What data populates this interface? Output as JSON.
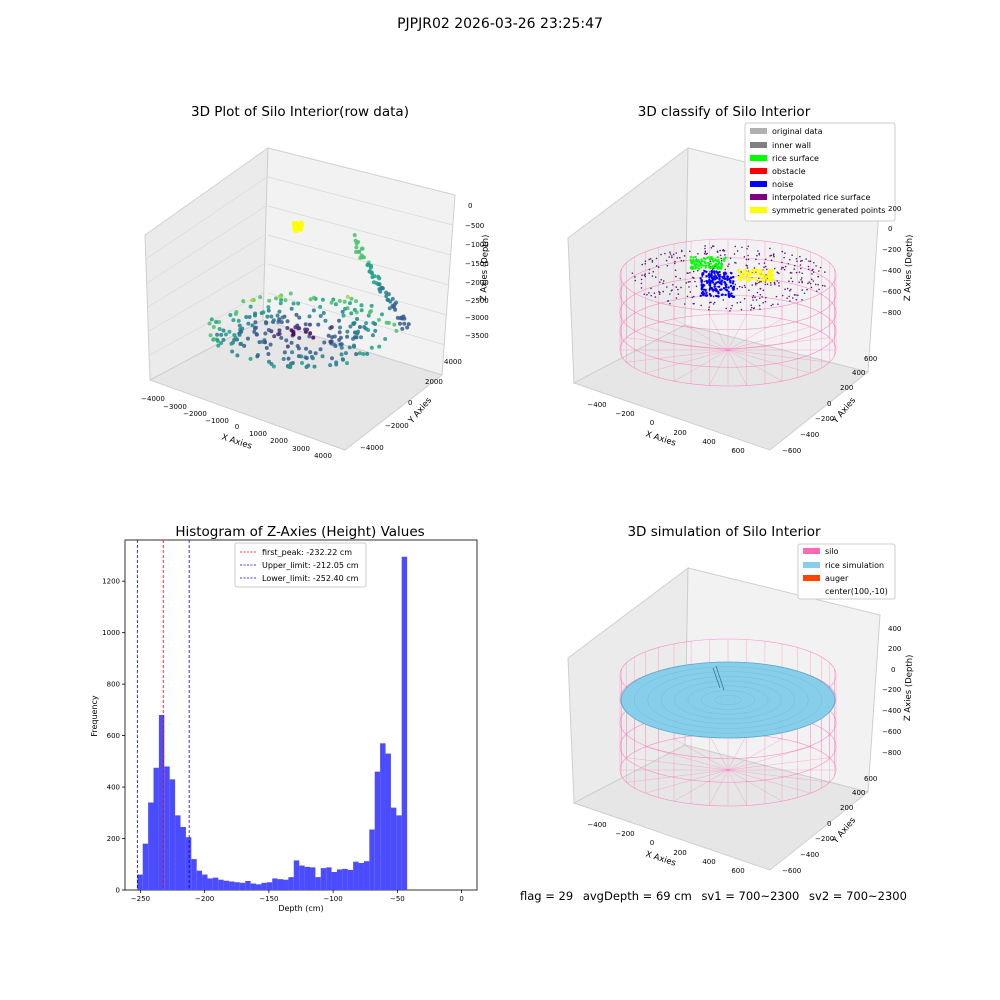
{
  "figure": {
    "suptitle": "PJPJR02 2026-03-26 23:25:47",
    "status": {
      "flag": "flag = 29",
      "avg_depth": "avgDepth = 69 cm",
      "sv1": "sv1 = 700~2300",
      "sv2": "sv2 = 700~2300"
    }
  },
  "colors": {
    "hist_bar": "#4b4bff",
    "first_peak": "#ff0000",
    "limits": "#0000cc",
    "pane": "#f2f2f2",
    "silo_pink": "#ff69b4",
    "rice_blue": "#87ceeb",
    "auger": "#ff4500"
  },
  "chart_data": [
    {
      "id": "raw",
      "type": "scatter",
      "title": "3D Plot of Silo Interior(row data)",
      "xlabel": "X Axies",
      "ylabel": "Y Axies",
      "zlabel": "Z Axies (Depth)",
      "xticks": [
        "−4000",
        "−3000",
        "−2000",
        "−1000",
        "0",
        "1000",
        "2000",
        "3000",
        "4000"
      ],
      "yticks": [
        "−4000",
        "−2000",
        "0",
        "2000",
        "4000"
      ],
      "zticks": [
        "0",
        "−500",
        "−1000",
        "−1500",
        "−2000",
        "−2500",
        "−3000",
        "−3500"
      ],
      "colormap": "viridis",
      "highlight_color": "#ffff00"
    },
    {
      "id": "classify",
      "type": "scatter",
      "title": "3D classify of Silo Interior",
      "xlabel": "X Axies",
      "ylabel": "Y Axies",
      "zlabel": "Z Axies (Depth)",
      "xticks": [
        "−400",
        "−200",
        "0",
        "200",
        "400",
        "600"
      ],
      "yticks": [
        "−600",
        "−400",
        "−200",
        "0",
        "200",
        "400",
        "600"
      ],
      "zticks": [
        "200",
        "0",
        "−200",
        "−400",
        "−600",
        "−800"
      ],
      "legend": [
        {
          "label": "original data",
          "color": "#b0b0b0"
        },
        {
          "label": "inner wall",
          "color": "#808080"
        },
        {
          "label": "rice surface",
          "color": "#00ff00"
        },
        {
          "label": "obstacle",
          "color": "#ff0000"
        },
        {
          "label": "noise",
          "color": "#0000ff"
        },
        {
          "label": "interpolated rice surface",
          "color": "#800080"
        },
        {
          "label": "symmetric generated points",
          "color": "#ffff00"
        }
      ]
    },
    {
      "id": "hist",
      "type": "bar",
      "title": "Histogram of Z-Axies (Height) Values",
      "xlabel": "Depth (cm)",
      "ylabel": "Frequency",
      "xlim": [
        -262,
        12
      ],
      "ylim": [
        0,
        1360
      ],
      "xticks": [
        -250,
        -200,
        -150,
        -100,
        -50,
        0
      ],
      "xtick_labels": [
        "−250",
        "−200",
        "−150",
        "−100",
        "−50",
        "0"
      ],
      "yticks": [
        0,
        200,
        400,
        600,
        800,
        1000,
        1200
      ],
      "bin_start": -252.4,
      "bin_width": 4.2,
      "values": [
        60,
        180,
        340,
        475,
        680,
        480,
        430,
        290,
        245,
        205,
        120,
        75,
        60,
        45,
        48,
        40,
        36,
        33,
        30,
        28,
        35,
        25,
        22,
        28,
        30,
        45,
        42,
        40,
        50,
        115,
        95,
        90,
        88,
        50,
        85,
        88,
        70,
        80,
        82,
        78,
        110,
        105,
        112,
        235,
        460,
        570,
        530,
        320,
        290,
        1295
      ],
      "vlines": [
        {
          "x": -232.22,
          "label": "first_peak: -232.22 cm",
          "color": "#ff0000"
        },
        {
          "x": -212.05,
          "label": "Upper_limit: -212.05 cm",
          "color": "#0000cc"
        },
        {
          "x": -252.4,
          "label": "Lower_limit: -252.40 cm",
          "color": "#0000cc"
        }
      ]
    },
    {
      "id": "sim",
      "type": "scatter",
      "title": "3D simulation of Silo Interior",
      "xlabel": "X Axies",
      "ylabel": "Y Axies",
      "zlabel": "Z Axies (Depth)",
      "xticks": [
        "−400",
        "−200",
        "0",
        "200",
        "400",
        "600"
      ],
      "yticks": [
        "−600",
        "−400",
        "−200",
        "0",
        "200",
        "400",
        "600"
      ],
      "zticks": [
        "400",
        "200",
        "0",
        "−200",
        "−400",
        "−600",
        "−800"
      ],
      "legend": [
        {
          "label": "silo",
          "color": "#ff69b4"
        },
        {
          "label": "rice simulation",
          "color": "#87ceeb"
        },
        {
          "label": "auger",
          "color": "#ff4500"
        },
        {
          "label": "center(100,-10)",
          "color": ""
        }
      ]
    }
  ]
}
